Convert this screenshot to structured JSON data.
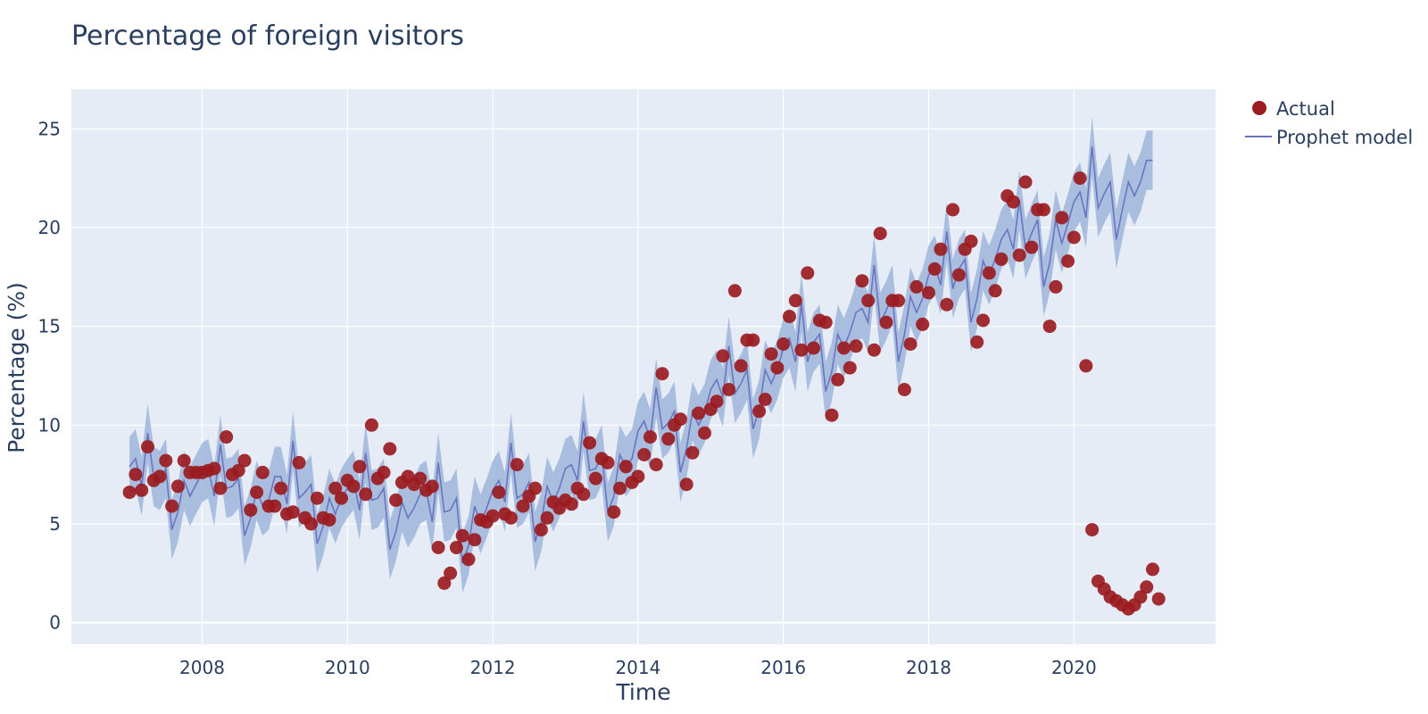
{
  "chart_data": {
    "type": "scatter",
    "title": "Percentage of foreign visitors",
    "xlabel": "Time",
    "ylabel": "Percentage (%)",
    "xlim": [
      2006.2,
      2021.95
    ],
    "ylim": [
      -1.1,
      27.0
    ],
    "x_ticks": [
      2008,
      2010,
      2012,
      2014,
      2016,
      2018,
      2020
    ],
    "y_ticks": [
      0,
      5,
      10,
      15,
      20,
      25
    ],
    "grid": true,
    "legend_position": "top-right",
    "colors": {
      "background": "#e5ecf6",
      "actual": "#9b1b1f",
      "model_line": "#6a74c0",
      "band": "#a2b9dd"
    },
    "legend": [
      {
        "name": "Actual",
        "kind": "marker"
      },
      {
        "name": "Prophet model",
        "kind": "line"
      }
    ],
    "series": [
      {
        "name": "Actual",
        "start_year": 2007,
        "start_month": 1,
        "values": [
          6.6,
          7.5,
          6.7,
          8.9,
          7.2,
          7.4,
          8.2,
          5.9,
          6.9,
          8.2,
          7.6,
          7.6,
          7.6,
          7.7,
          7.8,
          6.8,
          9.4,
          7.5,
          7.7,
          8.2,
          5.7,
          6.6,
          7.6,
          5.9,
          5.9,
          6.8,
          5.5,
          5.6,
          8.1,
          5.3,
          5.0,
          6.3,
          5.3,
          5.2,
          6.8,
          6.3,
          7.2,
          6.9,
          7.9,
          6.5,
          10.0,
          7.3,
          7.6,
          8.8,
          6.2,
          7.1,
          7.4,
          7.0,
          7.3,
          6.7,
          6.9,
          3.8,
          2.0,
          2.5,
          3.8,
          4.4,
          3.2,
          4.2,
          5.2,
          5.1,
          5.4,
          6.6,
          5.5,
          5.3,
          8.0,
          5.9,
          6.4,
          6.8,
          4.7,
          5.3,
          6.1,
          5.8,
          6.2,
          6.0,
          6.8,
          6.5,
          9.1,
          7.3,
          8.3,
          8.1,
          5.6,
          6.8,
          7.9,
          7.1,
          7.4,
          8.5,
          9.4,
          8.0,
          12.6,
          9.3,
          10.0,
          10.3,
          7.0,
          8.6,
          10.6,
          9.6,
          10.8,
          11.2,
          13.5,
          11.8,
          16.8,
          13.0,
          14.3,
          14.3,
          10.7,
          11.3,
          13.6,
          12.9,
          14.1,
          15.5,
          16.3,
          13.8,
          17.7,
          13.9,
          15.3,
          15.2,
          10.5,
          12.3,
          13.9,
          12.9,
          14.0,
          17.3,
          16.3,
          13.8,
          19.7,
          15.2,
          16.3,
          16.3,
          11.8,
          14.1,
          17.0,
          15.1,
          16.7,
          17.9,
          18.9,
          16.1,
          20.9,
          17.6,
          18.9,
          19.3,
          14.2,
          15.3,
          17.7,
          16.8,
          18.4,
          21.6,
          21.3,
          18.6,
          22.3,
          19.0,
          20.9,
          20.9,
          15.0,
          17.0,
          20.5,
          18.3,
          19.5,
          22.5,
          13.0,
          4.7,
          2.1,
          1.7,
          1.3,
          1.1,
          0.9,
          0.7,
          0.9,
          1.3,
          1.8,
          2.7,
          1.2
        ]
      },
      {
        "name": "Prophet model",
        "start_year": 2007,
        "start_month": 1,
        "values": [
          7.9,
          8.3,
          6.9,
          9.6,
          7.4,
          7.2,
          7.8,
          4.7,
          5.6,
          7.2,
          6.4,
          7.0,
          7.6,
          7.8,
          6.4,
          9.0,
          6.8,
          6.9,
          7.3,
          4.4,
          5.3,
          6.7,
          5.9,
          6.2,
          7.4,
          7.4,
          6.0,
          9.2,
          6.3,
          6.6,
          7.0,
          4.0,
          4.9,
          6.3,
          5.5,
          6.3,
          6.8,
          7.2,
          5.7,
          8.6,
          6.2,
          6.3,
          6.8,
          3.7,
          4.6,
          6.1,
          5.3,
          5.8,
          6.5,
          6.7,
          5.1,
          8.1,
          5.6,
          5.7,
          6.3,
          3.0,
          3.9,
          5.9,
          5.0,
          5.8,
          6.7,
          7.2,
          6.1,
          9.1,
          6.3,
          6.5,
          7.1,
          4.1,
          5.1,
          6.9,
          6.1,
          6.8,
          7.8,
          8.0,
          7.2,
          10.2,
          7.7,
          7.8,
          8.5,
          5.6,
          6.4,
          8.5,
          7.9,
          8.3,
          9.7,
          10.2,
          9.3,
          11.9,
          9.8,
          10.1,
          10.7,
          7.6,
          8.8,
          10.7,
          10.0,
          10.6,
          11.8,
          12.3,
          11.4,
          14.0,
          11.6,
          12.1,
          12.8,
          9.8,
          10.8,
          12.8,
          12.1,
          12.8,
          13.9,
          14.4,
          13.2,
          16.2,
          13.2,
          14.2,
          14.6,
          11.7,
          12.7,
          14.6,
          13.9,
          14.7,
          15.7,
          15.9,
          15.2,
          18.1,
          15.2,
          15.8,
          16.6,
          13.2,
          14.6,
          16.5,
          15.7,
          16.4,
          17.6,
          18.1,
          17.1,
          19.8,
          16.9,
          17.9,
          18.4,
          15.2,
          16.4,
          18.3,
          17.6,
          18.4,
          19.4,
          19.9,
          18.9,
          21.4,
          18.9,
          19.7,
          20.4,
          17.0,
          18.2,
          20.4,
          19.2,
          20.2,
          21.3,
          21.8,
          20.5,
          24.1,
          21.0,
          21.7,
          22.3,
          19.4,
          20.9,
          22.3,
          21.6,
          22.3,
          23.4,
          23.4
        ]
      }
    ],
    "band": {
      "name": "uncertainty-interval",
      "half_width": 1.5
    }
  }
}
